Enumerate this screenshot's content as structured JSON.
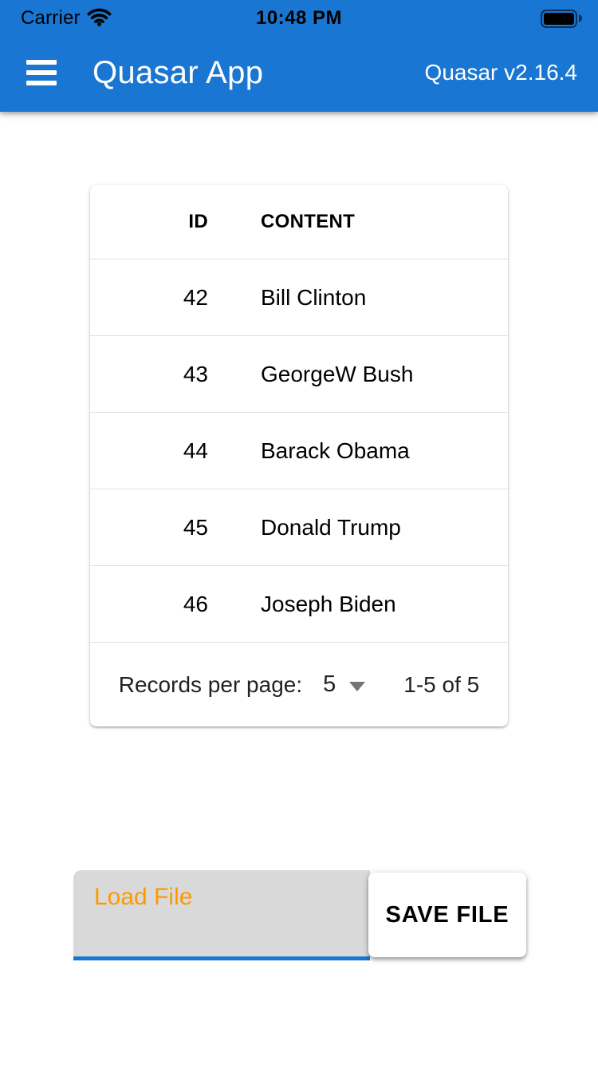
{
  "status_bar": {
    "carrier": "Carrier",
    "time": "10:48 PM"
  },
  "header": {
    "title": "Quasar App",
    "version": "Quasar v2.16.4"
  },
  "table": {
    "columns": {
      "id": "ID",
      "content": "CONTENT"
    },
    "rows": [
      {
        "id": "42",
        "content": "Bill Clinton"
      },
      {
        "id": "43",
        "content": "GeorgeW Bush"
      },
      {
        "id": "44",
        "content": "Barack Obama"
      },
      {
        "id": "45",
        "content": "Donald Trump"
      },
      {
        "id": "46",
        "content": "Joseph Biden"
      }
    ],
    "pagination": {
      "label": "Records per page:",
      "per_page": "5",
      "range": "1-5 of 5"
    }
  },
  "file_bar": {
    "load_label": "Load File",
    "save_label": "SAVE FILE"
  },
  "icons": {
    "wifi": "wifi-icon",
    "battery": "battery-icon",
    "menu": "hamburger-menu-icon",
    "dropdown": "dropdown-arrow-icon"
  },
  "colors": {
    "primary": "#1976d2",
    "file_label_orange": "#ff9800",
    "field_grey": "#d9d9d9",
    "separator": "rgba(0,0,0,0.12)"
  }
}
